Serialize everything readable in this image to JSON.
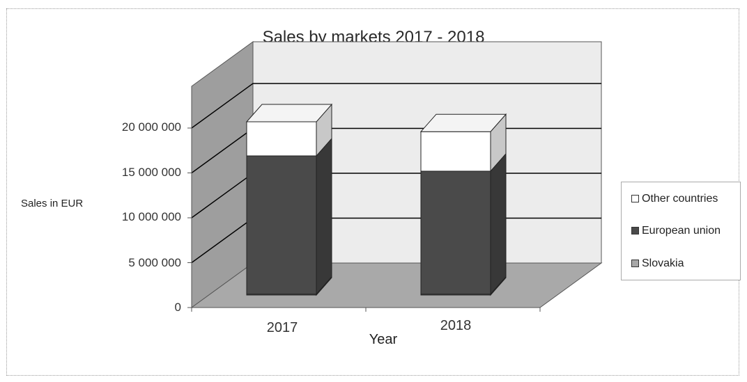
{
  "chart_data": {
    "type": "bar",
    "stacked": true,
    "three_d": true,
    "title": "Sales by markets 2017 - 2018",
    "xlabel": "Year",
    "ylabel": "Sales in EUR",
    "categories": [
      "2017",
      "2018"
    ],
    "y_ticks": [
      "0",
      "5 000 000",
      "10 000 000",
      "15 000 000",
      "20 000 000"
    ],
    "ylim": [
      0,
      20000000
    ],
    "series": [
      {
        "name": "Slovakia",
        "values": [
          100000,
          100000
        ],
        "color": "#a8a8a8"
      },
      {
        "name": "European union",
        "values": [
          15400000,
          13700000
        ],
        "color": "#4a4a4a"
      },
      {
        "name": "Other countries",
        "values": [
          3800000,
          4400000
        ],
        "color": "#ffffff"
      }
    ],
    "legend_position": "right",
    "grid": true
  }
}
